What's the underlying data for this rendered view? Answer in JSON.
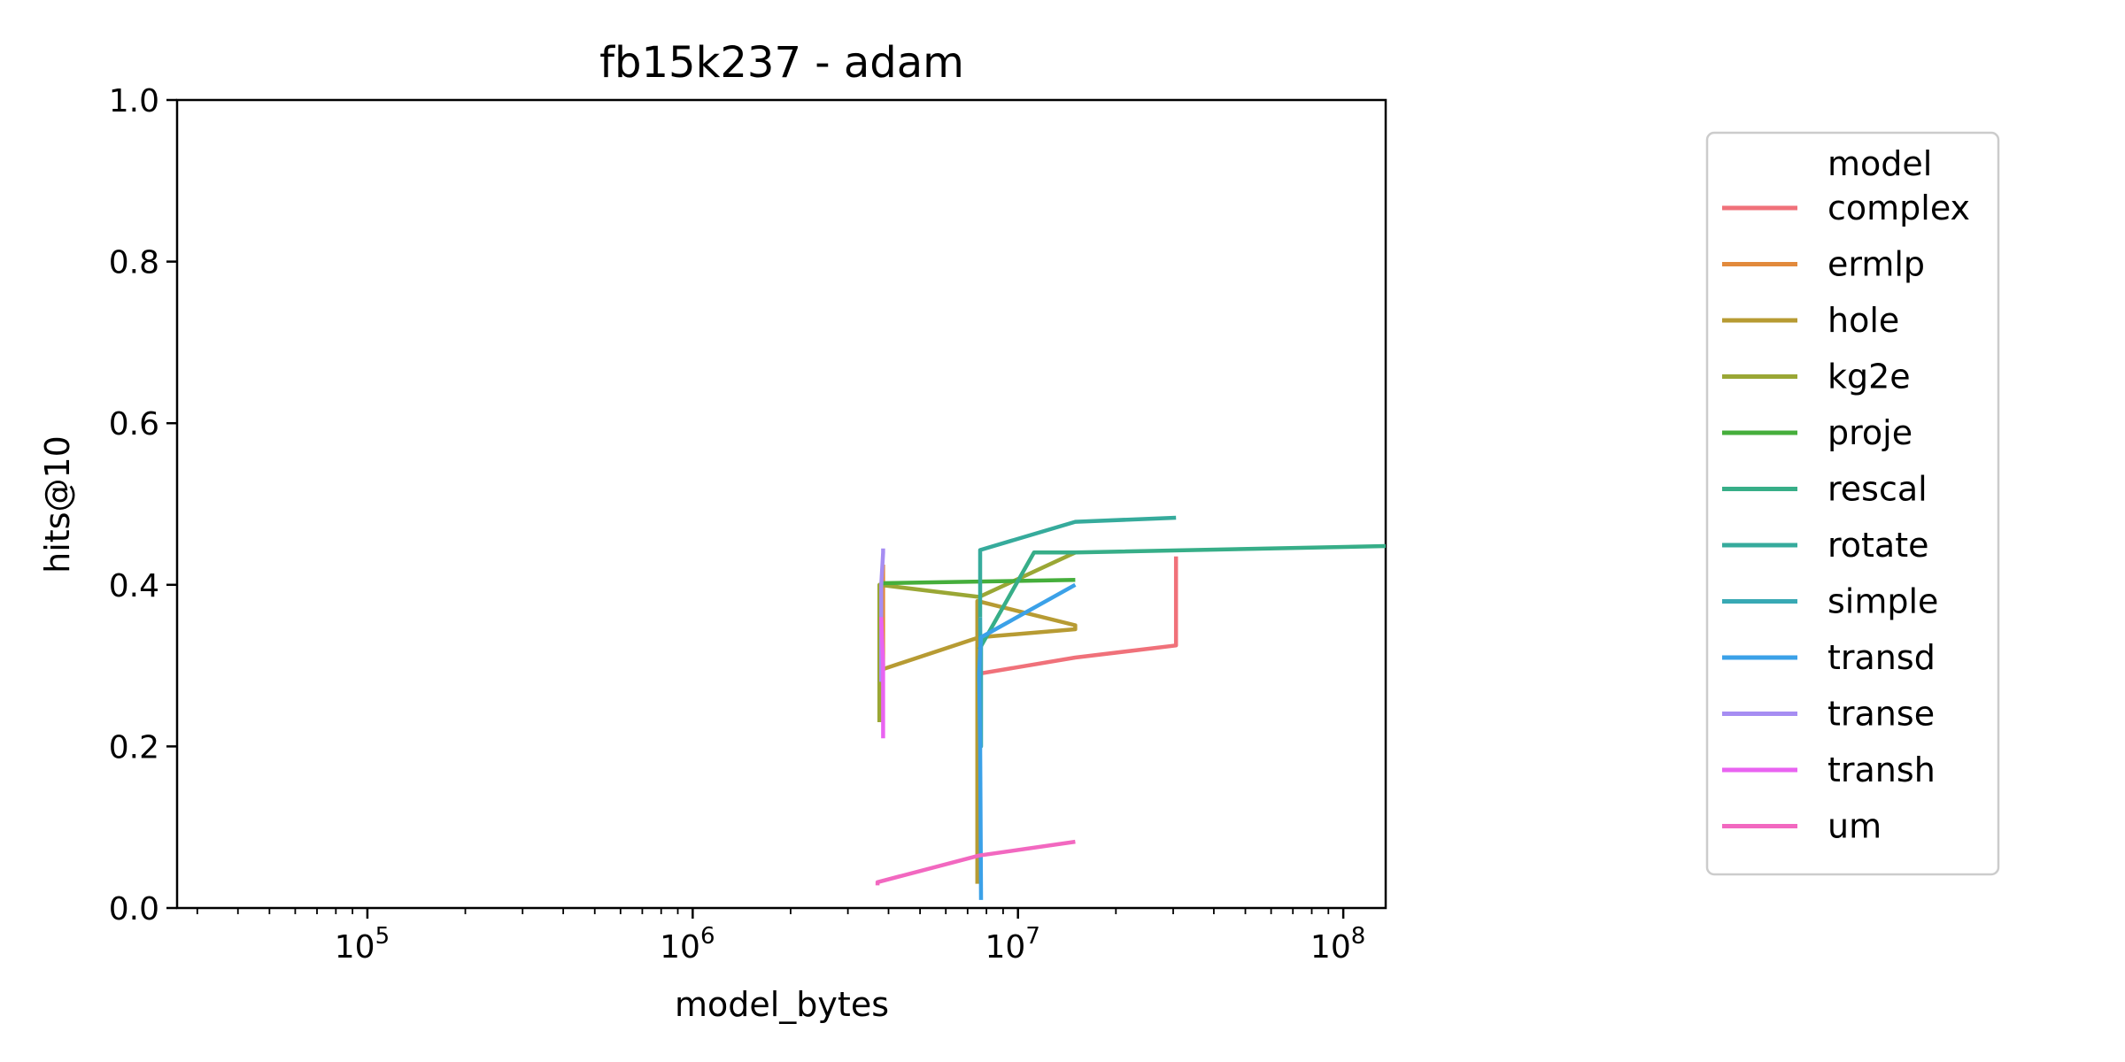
{
  "chart_data": {
    "type": "line",
    "title": "fb15k237 - adam",
    "xlabel": "model_bytes",
    "ylabel": "hits@10",
    "x_scale": "log",
    "xlim": [
      26000,
      135000000
    ],
    "ylim": [
      0.0,
      1.0
    ],
    "x_ticks": [
      {
        "value": 100000,
        "base": "10",
        "exp": "5"
      },
      {
        "value": 1000000,
        "base": "10",
        "exp": "6"
      },
      {
        "value": 10000000,
        "base": "10",
        "exp": "7"
      },
      {
        "value": 100000000,
        "base": "10",
        "exp": "8"
      }
    ],
    "y_ticks": [
      {
        "value": 0.0,
        "label": "0.0"
      },
      {
        "value": 0.2,
        "label": "0.2"
      },
      {
        "value": 0.4,
        "label": "0.4"
      },
      {
        "value": 0.6,
        "label": "0.6"
      },
      {
        "value": 0.8,
        "label": "0.8"
      },
      {
        "value": 1.0,
        "label": "1.0"
      }
    ],
    "grid": false,
    "legend": {
      "title": "model",
      "position": "right"
    },
    "series": [
      {
        "name": "complex",
        "color": "#f0717a",
        "x": [
          7600000,
          15000000,
          30600000,
          30600000
        ],
        "y": [
          0.29,
          0.31,
          0.325,
          0.435
        ]
      },
      {
        "name": "ermlp",
        "color": "#e28a3c",
        "x": [
          3850000,
          3850000,
          3850000
        ],
        "y": [
          0.3,
          0.36,
          0.425
        ]
      },
      {
        "name": "hole",
        "color": "#b79b33",
        "x": [
          3800000,
          7600000,
          15000000,
          15000000,
          7500000,
          7500000
        ],
        "y": [
          0.295,
          0.335,
          0.345,
          0.35,
          0.38,
          0.03
        ]
      },
      {
        "name": "kg2e",
        "color": "#9aa735",
        "x": [
          3750000,
          3750000,
          7600000,
          15000000
        ],
        "y": [
          0.23,
          0.4,
          0.385,
          0.44
        ]
      },
      {
        "name": "proje",
        "color": "#45ae3b",
        "x": [
          3800000,
          15000000
        ],
        "y": [
          0.402,
          0.406
        ]
      },
      {
        "name": "rescal",
        "color": "#37ae88",
        "x": [
          7600000,
          11200000,
          15000000,
          135000000
        ],
        "y": [
          0.32,
          0.44,
          0.44,
          0.448
        ]
      },
      {
        "name": "rotate",
        "color": "#36ab9c",
        "x": [
          7650000,
          7650000,
          15000000,
          30600000
        ],
        "y": [
          0.36,
          0.443,
          0.478,
          0.483
        ]
      },
      {
        "name": "simple",
        "color": "#38a9b4",
        "x": [
          7700000,
          7700000,
          7650000
        ],
        "y": [
          0.33,
          0.2,
          0.36
        ]
      },
      {
        "name": "transd",
        "color": "#3ba1e8",
        "x": [
          7700000,
          7650000,
          7600000,
          7650000,
          7700000,
          15000000
        ],
        "y": [
          0.01,
          0.2,
          0.29,
          0.32,
          0.335,
          0.4
        ]
      },
      {
        "name": "transe",
        "color": "#a68df2",
        "x": [
          3800000,
          3800000,
          3850000,
          3850000
        ],
        "y": [
          0.28,
          0.4,
          0.44,
          0.445
        ]
      },
      {
        "name": "transh",
        "color": "#e963f1",
        "x": [
          3850000,
          3850000,
          3800000
        ],
        "y": [
          0.21,
          0.3,
          0.36
        ]
      },
      {
        "name": "um",
        "color": "#f268c0",
        "x": [
          3700000,
          3700000,
          7600000,
          15000000
        ],
        "y": [
          0.028,
          0.032,
          0.065,
          0.082
        ]
      }
    ]
  }
}
